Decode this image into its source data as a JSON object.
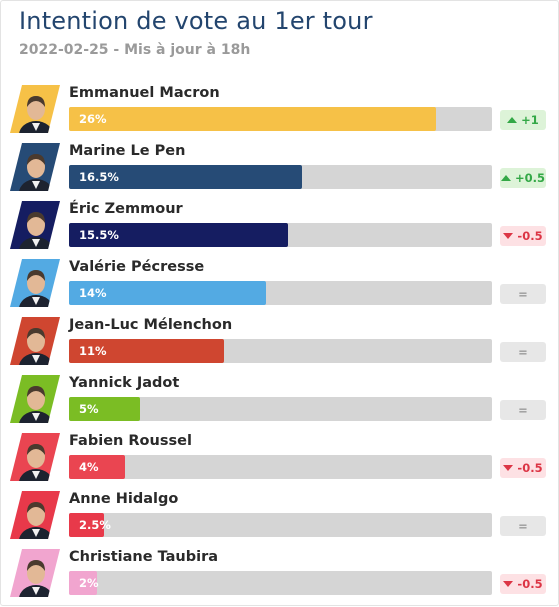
{
  "header": {
    "title": "Intention de vote au 1er tour",
    "subtitle": "2022-02-25 - Mis à jour à 18h"
  },
  "chart_data": {
    "type": "bar",
    "orientation": "horizontal",
    "title": "Intention de vote au 1er tour",
    "subtitle": "2022-02-25 - Mis à jour à 18h",
    "xlim": [
      0,
      30
    ],
    "categories": [
      "Emmanuel Macron",
      "Marine Le Pen",
      "Éric Zemmour",
      "Valérie Pécresse",
      "Jean-Luc Mélenchon",
      "Yannick Jadot",
      "Fabien Roussel",
      "Anne Hidalgo",
      "Christiane Taubira"
    ],
    "values": [
      26,
      16.5,
      15.5,
      14,
      11,
      5,
      4,
      2.5,
      2
    ],
    "value_labels": [
      "26%",
      "16.5%",
      "15.5%",
      "14%",
      "11%",
      "5%",
      "4%",
      "2.5%",
      "2%"
    ],
    "changes": [
      "+1",
      "+0.5",
      "-0.5",
      "=",
      "=",
      "=",
      "-0.5",
      "=",
      "-0.5"
    ],
    "change_directions": [
      "up",
      "up",
      "down",
      "same",
      "same",
      "same",
      "down",
      "same",
      "down"
    ],
    "colors": [
      "#f6c147",
      "#264b76",
      "#151d61",
      "#53aae3",
      "#cf4630",
      "#7bbd24",
      "#ea4551",
      "#e8394a",
      "#f1a5cf"
    ]
  }
}
